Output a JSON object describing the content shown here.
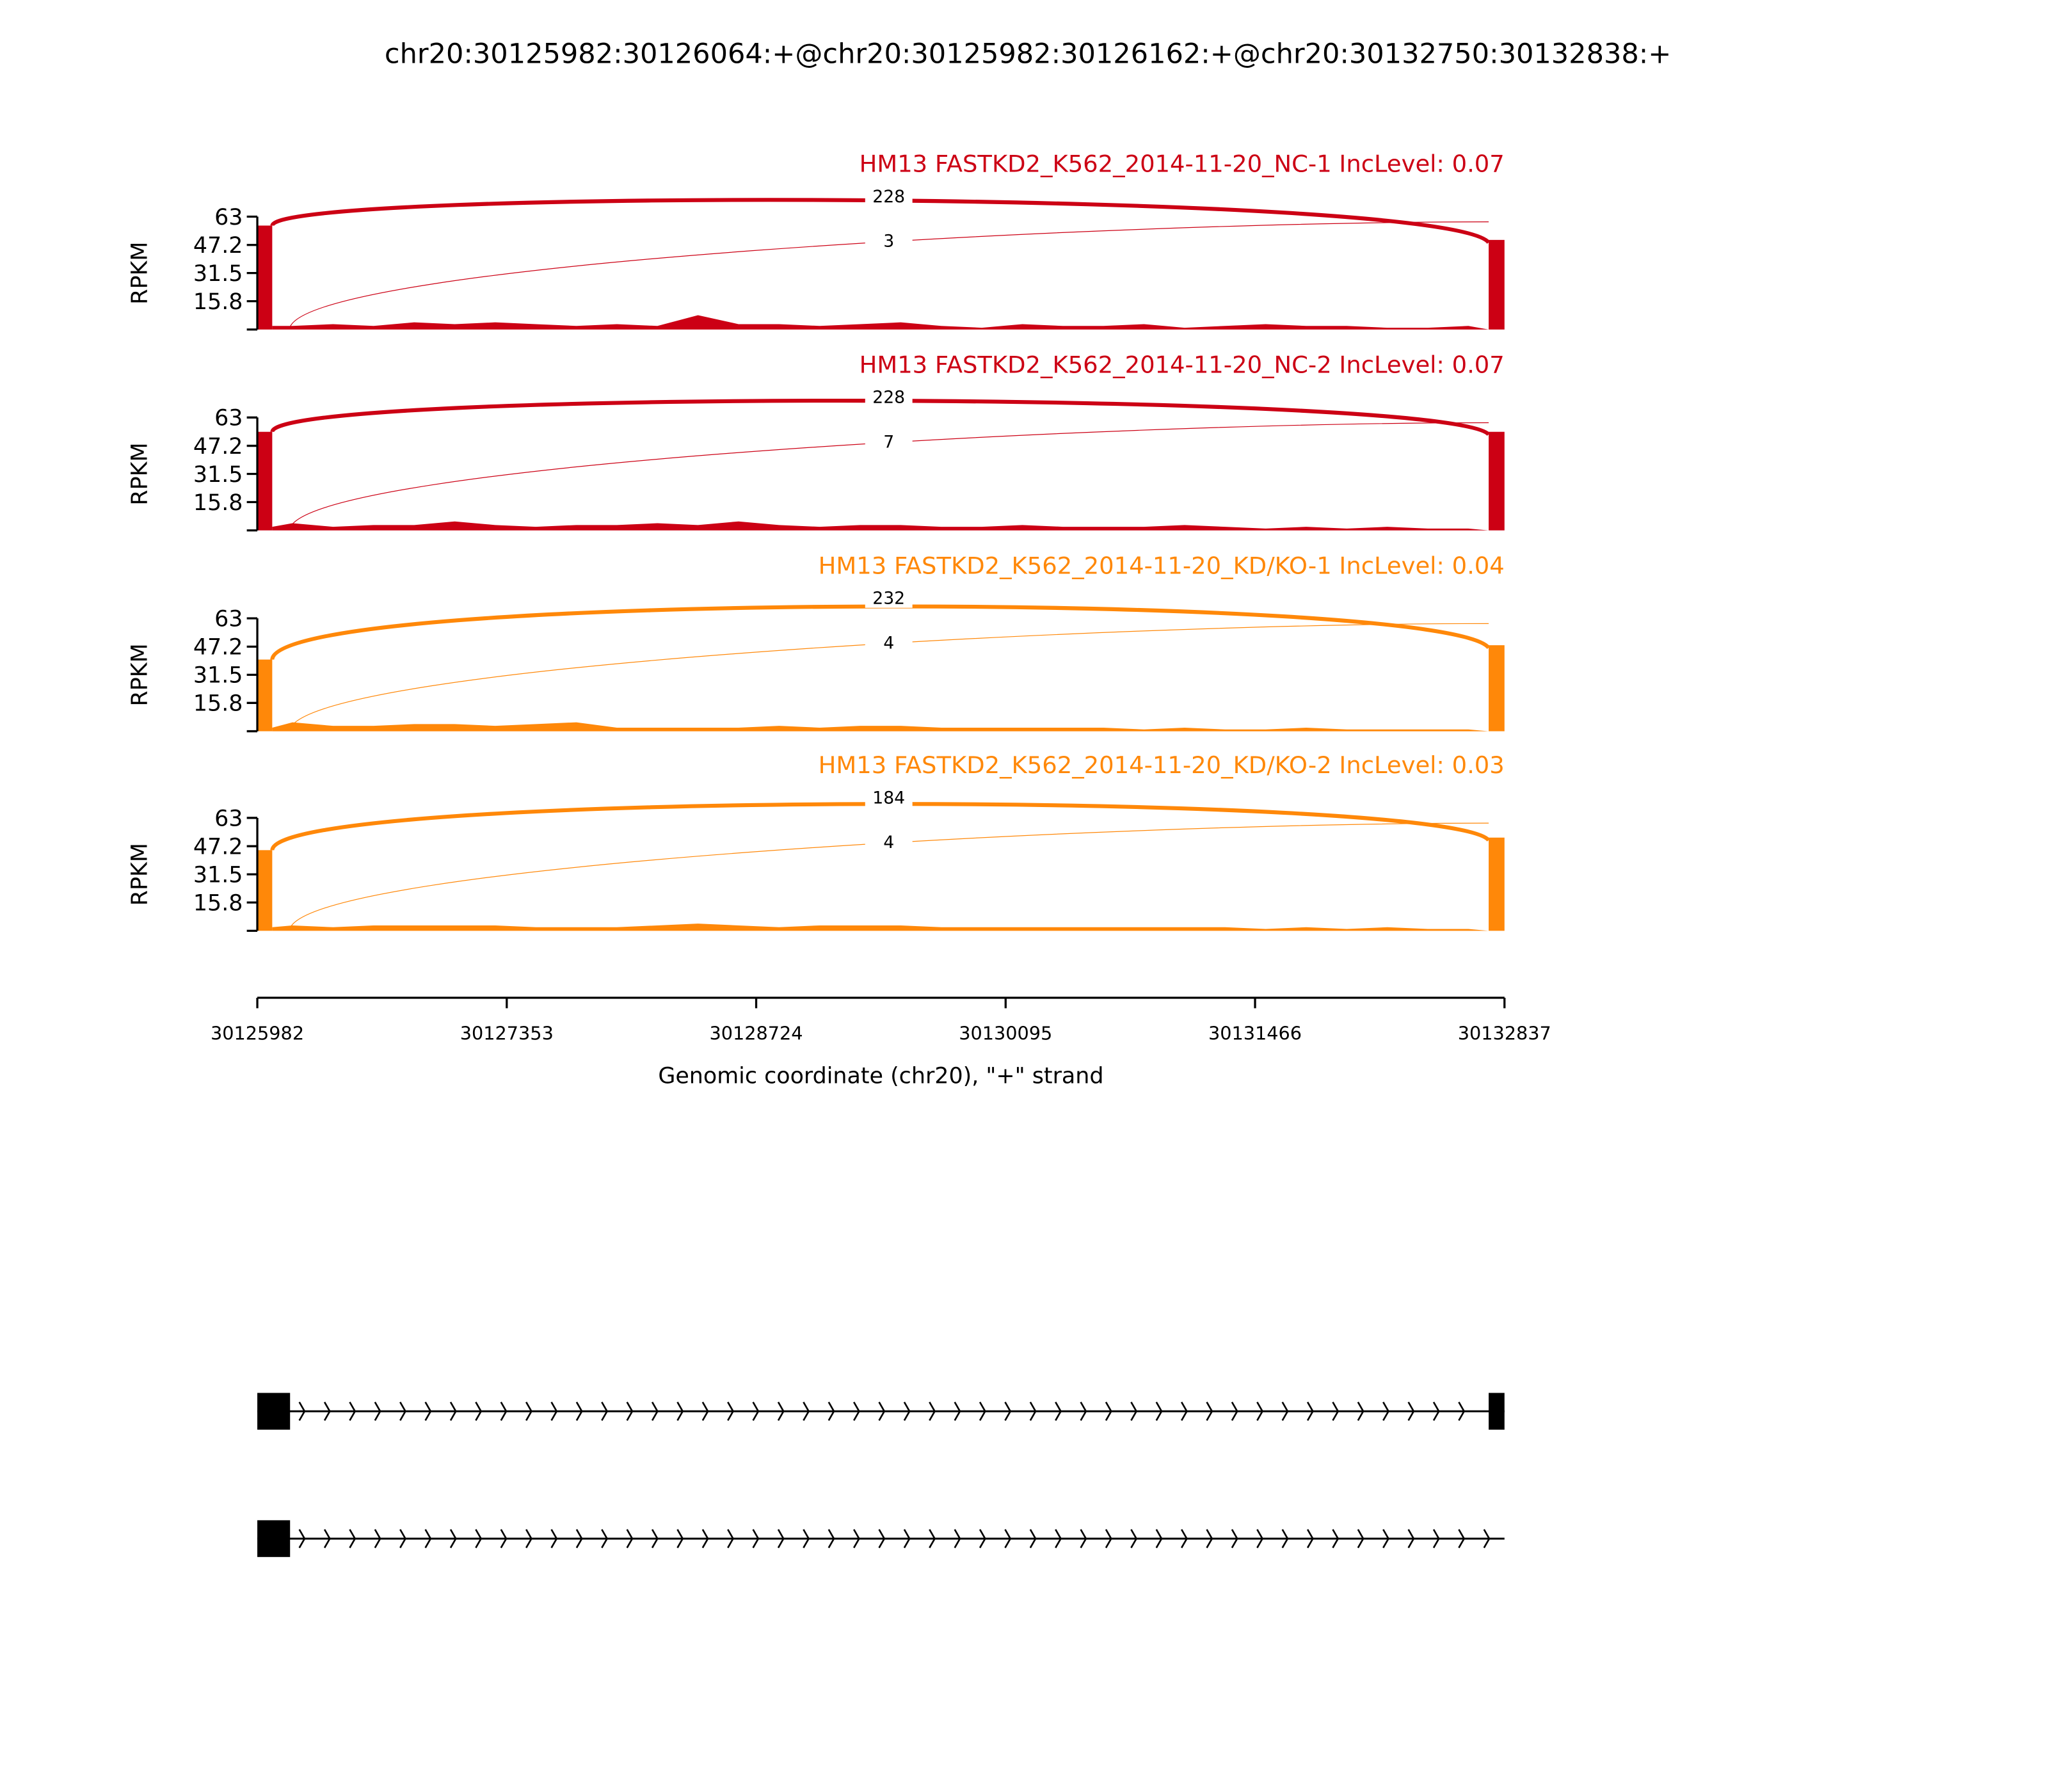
{
  "chart_data": {
    "type": "area",
    "title": "chr20:30125982:30126064:+@chr20:30125982:30126162:+@chr20:30132750:30132838:+",
    "xlabel": "Genomic coordinate (chr20), \"+\" strand",
    "ylabel": "RPKM",
    "xlim": [
      30125982,
      30132837
    ],
    "ylim": [
      0,
      63
    ],
    "yticks": [
      "63",
      "47.2",
      "31.5",
      "15.8"
    ],
    "xticks": [
      "30125982",
      "30127353",
      "30128724",
      "30130095",
      "30131466",
      "30132837"
    ],
    "samples": [
      {
        "label": "HM13 FASTKD2_K562_2014-11-20_NC-1 IncLevel: 0.07",
        "color": "#cc0014",
        "junctions": [
          {
            "start": 30126064,
            "end": 30132750,
            "count": "228"
          },
          {
            "start": 30126162,
            "end": 30132750,
            "count": "3"
          }
        ],
        "exon1_rpkm": 58,
        "exon3_rpkm": 50,
        "intron_rpkm": [
          2,
          3,
          2,
          4,
          3,
          4,
          3,
          2,
          3,
          2,
          8,
          3,
          3,
          2,
          3,
          4,
          2,
          1,
          3,
          2,
          2,
          3,
          1,
          2,
          3,
          2,
          2,
          1,
          1,
          2
        ]
      },
      {
        "label": "HM13 FASTKD2_K562_2014-11-20_NC-2 IncLevel: 0.07",
        "color": "#cc0014",
        "junctions": [
          {
            "start": 30126064,
            "end": 30132750,
            "count": "228"
          },
          {
            "start": 30126162,
            "end": 30132750,
            "count": "7"
          }
        ],
        "exon1_rpkm": 55,
        "exon3_rpkm": 55,
        "intron_rpkm": [
          4,
          2,
          3,
          3,
          5,
          3,
          2,
          3,
          3,
          4,
          3,
          5,
          3,
          2,
          3,
          3,
          2,
          2,
          3,
          2,
          2,
          2,
          3,
          2,
          1,
          2,
          1,
          2,
          1,
          1
        ]
      },
      {
        "label": "HM13 FASTKD2_K562_2014-11-20_KD/KO-1 IncLevel: 0.04",
        "color": "#ff8809",
        "junctions": [
          {
            "start": 30126064,
            "end": 30132750,
            "count": "232"
          },
          {
            "start": 30126162,
            "end": 30132750,
            "count": "4"
          }
        ],
        "exon1_rpkm": 40,
        "exon3_rpkm": 48,
        "intron_rpkm": [
          5,
          3,
          3,
          4,
          4,
          3,
          4,
          5,
          2,
          2,
          2,
          2,
          3,
          2,
          3,
          3,
          2,
          2,
          2,
          2,
          2,
          1,
          2,
          1,
          1,
          2,
          1,
          1,
          1,
          1
        ]
      },
      {
        "label": "HM13 FASTKD2_K562_2014-11-20_KD/KO-2 IncLevel: 0.03",
        "color": "#ff8809",
        "junctions": [
          {
            "start": 30126064,
            "end": 30132750,
            "count": "184"
          },
          {
            "start": 30126162,
            "end": 30132750,
            "count": "4"
          }
        ],
        "exon1_rpkm": 45,
        "exon3_rpkm": 52,
        "intron_rpkm": [
          3,
          2,
          3,
          3,
          3,
          3,
          2,
          2,
          2,
          3,
          4,
          3,
          2,
          3,
          3,
          3,
          2,
          2,
          2,
          2,
          2,
          2,
          2,
          2,
          1,
          2,
          1,
          2,
          1,
          1
        ]
      }
    ],
    "gene_models": [
      {
        "exons": [
          [
            30125982,
            30126162
          ],
          [
            30132750,
            30132838
          ]
        ]
      },
      {
        "exons": [
          [
            30125982,
            30126162
          ]
        ]
      }
    ]
  }
}
